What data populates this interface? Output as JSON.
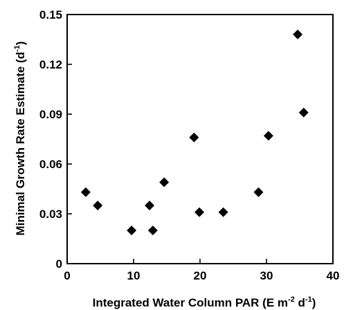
{
  "chart_data": {
    "type": "scatter",
    "xlabel_main": "Integrated Water Column PAR (E m",
    "xlabel_sup1": "-2",
    "xlabel_mid": " d",
    "xlabel_sup2": "-1",
    "xlabel_end": ")",
    "ylabel_main": "Minimal Growth Rate Estimate (d",
    "ylabel_sup": "-1",
    "ylabel_end": ")",
    "xlim": [
      0,
      40
    ],
    "ylim": [
      0,
      0.15
    ],
    "x_ticks": [
      0,
      10,
      20,
      30,
      40
    ],
    "x_tick_labels": [
      "0",
      "10",
      "20",
      "30",
      "40"
    ],
    "y_ticks": [
      0,
      0.03,
      0.06,
      0.09,
      0.12,
      0.15
    ],
    "y_tick_labels": [
      "0",
      "0.03",
      "0.06",
      "0.09",
      "0.12",
      "0.15"
    ],
    "marker": "diamond",
    "marker_color": "#000000",
    "points": [
      {
        "x": 2.8,
        "y": 0.043
      },
      {
        "x": 4.6,
        "y": 0.035
      },
      {
        "x": 9.7,
        "y": 0.02
      },
      {
        "x": 12.4,
        "y": 0.035
      },
      {
        "x": 12.9,
        "y": 0.02
      },
      {
        "x": 14.6,
        "y": 0.049
      },
      {
        "x": 19.1,
        "y": 0.076
      },
      {
        "x": 19.9,
        "y": 0.031
      },
      {
        "x": 23.5,
        "y": 0.031
      },
      {
        "x": 28.8,
        "y": 0.043
      },
      {
        "x": 30.3,
        "y": 0.077
      },
      {
        "x": 34.7,
        "y": 0.138
      },
      {
        "x": 35.6,
        "y": 0.091
      }
    ]
  }
}
